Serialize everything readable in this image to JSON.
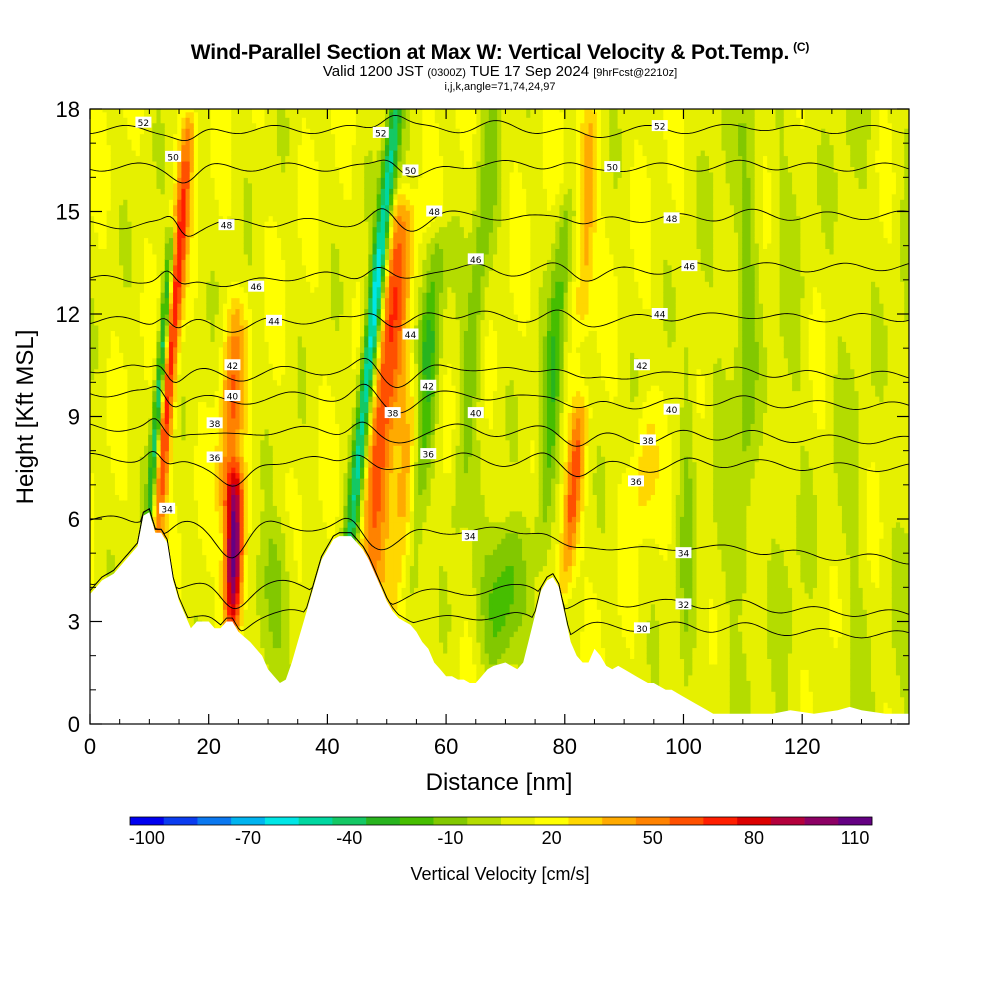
{
  "header": {
    "title": "Wind-Parallel Section at Max W: Vertical Velocity & Pot.Temp.",
    "copyright": "(C)",
    "valid_prefix": "Valid 1200 JST",
    "valid_utc": "(0300Z)",
    "valid_date": "TUE 17 Sep 2024",
    "forecast": "[9hrFcst@2210z]",
    "indices": "i,j,k,angle=71,74,24,97"
  },
  "chart_data": {
    "type": "heatmap",
    "xlabel": "Distance [nm]",
    "ylabel": "Height [Kft MSL]",
    "xlim": [
      0,
      138
    ],
    "ylim": [
      0,
      18
    ],
    "x_ticks": [
      0,
      20,
      40,
      60,
      80,
      100,
      120
    ],
    "y_ticks": [
      0,
      3,
      6,
      9,
      12,
      15,
      18
    ],
    "grid": false,
    "colorbar": {
      "title": "Vertical Velocity [cm/s]",
      "tick_labels": [
        "-100",
        "-70",
        "-40",
        "-10",
        "20",
        "50",
        "80",
        "110"
      ],
      "tick_values": [
        -100,
        -70,
        -40,
        -10,
        20,
        50,
        80,
        110
      ],
      "colors": [
        "#0000f0",
        "#0a3cf0",
        "#0a78f0",
        "#00b4f0",
        "#00e6e6",
        "#00d7a0",
        "#14c864",
        "#28b41e",
        "#46be00",
        "#82c800",
        "#b4dc00",
        "#e6f000",
        "#ffff00",
        "#ffd700",
        "#ffaa00",
        "#ff8200",
        "#ff5000",
        "#ff1e00",
        "#dc0000",
        "#b4003c",
        "#8c0064",
        "#640082"
      ],
      "range": [
        -105,
        115
      ]
    },
    "terrain_top_kft": [
      [
        0,
        3.8
      ],
      [
        2,
        4.2
      ],
      [
        4,
        4.4
      ],
      [
        6,
        4.8
      ],
      [
        8,
        5.2
      ],
      [
        9,
        6.1
      ],
      [
        10,
        6.2
      ],
      [
        11,
        5.6
      ],
      [
        12,
        5.6
      ],
      [
        13,
        5.3
      ],
      [
        14,
        4.2
      ],
      [
        15,
        3.6
      ],
      [
        16,
        3.2
      ],
      [
        17,
        2.8
      ],
      [
        18,
        3.0
      ],
      [
        20,
        3.0
      ],
      [
        21,
        2.8
      ],
      [
        22,
        2.8
      ],
      [
        23,
        3.0
      ],
      [
        24,
        3.0
      ],
      [
        25,
        2.7
      ],
      [
        27,
        2.4
      ],
      [
        29,
        2.0
      ],
      [
        30,
        1.6
      ],
      [
        31,
        1.4
      ],
      [
        32,
        1.2
      ],
      [
        33,
        1.3
      ],
      [
        34,
        1.8
      ],
      [
        35,
        2.4
      ],
      [
        36,
        3.0
      ],
      [
        37,
        3.6
      ],
      [
        38,
        4.2
      ],
      [
        39,
        4.8
      ],
      [
        40,
        5.1
      ],
      [
        41,
        5.4
      ],
      [
        42,
        5.5
      ],
      [
        44,
        5.5
      ],
      [
        45,
        5.3
      ],
      [
        46,
        5.1
      ],
      [
        47,
        4.8
      ],
      [
        48,
        4.4
      ],
      [
        49,
        4.0
      ],
      [
        50,
        3.6
      ],
      [
        51,
        3.3
      ],
      [
        52,
        3.1
      ],
      [
        53,
        3.0
      ],
      [
        54,
        2.9
      ],
      [
        55,
        2.7
      ],
      [
        56,
        2.4
      ],
      [
        57,
        2.2
      ],
      [
        58,
        1.8
      ],
      [
        59,
        1.6
      ],
      [
        60,
        1.4
      ],
      [
        61,
        1.4
      ],
      [
        62,
        1.3
      ],
      [
        63,
        1.3
      ],
      [
        64,
        1.2
      ],
      [
        65,
        1.2
      ],
      [
        66,
        1.4
      ],
      [
        67,
        1.6
      ],
      [
        68,
        1.7
      ],
      [
        70,
        1.8
      ],
      [
        72,
        1.6
      ],
      [
        73,
        1.8
      ],
      [
        74,
        2.5
      ],
      [
        75,
        3.2
      ],
      [
        76,
        3.9
      ],
      [
        77,
        4.2
      ],
      [
        78,
        4.3
      ],
      [
        79,
        4.0
      ],
      [
        80,
        3.2
      ],
      [
        81,
        2.4
      ],
      [
        82,
        2.0
      ],
      [
        83,
        1.8
      ],
      [
        84,
        1.8
      ],
      [
        85,
        2.2
      ],
      [
        86,
        2.0
      ],
      [
        87,
        1.7
      ],
      [
        88,
        1.6
      ],
      [
        89,
        1.7
      ],
      [
        90,
        1.6
      ],
      [
        91,
        1.5
      ],
      [
        92,
        1.4
      ],
      [
        93,
        1.3
      ],
      [
        94,
        1.2
      ],
      [
        95,
        1.2
      ],
      [
        96,
        1.1
      ],
      [
        97,
        1.0
      ],
      [
        98,
        1.0
      ],
      [
        99,
        0.9
      ],
      [
        100,
        0.8
      ],
      [
        101,
        0.7
      ],
      [
        102,
        0.6
      ],
      [
        103,
        0.5
      ],
      [
        104,
        0.4
      ],
      [
        105,
        0.3
      ],
      [
        110,
        0.3
      ],
      [
        115,
        0.3
      ],
      [
        118,
        0.4
      ],
      [
        122,
        0.3
      ],
      [
        126,
        0.4
      ],
      [
        128,
        0.5
      ],
      [
        130,
        0.4
      ],
      [
        132,
        0.35
      ],
      [
        134,
        0.3
      ],
      [
        138,
        0.3
      ]
    ],
    "updrafts": [
      {
        "x": 11.0,
        "slope": 0.45,
        "width": 1.3,
        "peak": 62,
        "zmin": 5.0,
        "zmax": 17.5
      },
      {
        "x": 24.0,
        "slope": 0.1,
        "width": 1.5,
        "peak": 110,
        "zmin": 3.0,
        "zmax": 7.0
      },
      {
        "x": 23.0,
        "slope": 0.3,
        "width": 2.0,
        "peak": 40,
        "zmin": 6.5,
        "zmax": 12.0
      },
      {
        "x": 47.0,
        "slope": 0.5,
        "width": 2.6,
        "peak": 55,
        "zmin": 4.2,
        "zmax": 15.0
      },
      {
        "x": 52.0,
        "slope": 0.4,
        "width": 2.3,
        "peak": 30,
        "zmin": 3.5,
        "zmax": 10.0
      },
      {
        "x": 80.0,
        "slope": 0.5,
        "width": 1.5,
        "peak": 48,
        "zmin": 4.0,
        "zmax": 9.0
      },
      {
        "x": 83.0,
        "slope": 0.2,
        "width": 1.6,
        "peak": 35,
        "zmin": 12.0,
        "zmax": 17.5
      },
      {
        "x": 93.0,
        "slope": 0.2,
        "width": 2.0,
        "peak": 20,
        "zmin": 6.0,
        "zmax": 9.0
      }
    ],
    "downdrafts": [
      {
        "x": 10.0,
        "slope": 0.45,
        "width": 0.8,
        "peak": -70,
        "zmin": 6.0,
        "zmax": 14.0
      },
      {
        "x": 44.0,
        "slope": 0.6,
        "width": 1.3,
        "peak": -85,
        "zmin": 5.5,
        "zmax": 18.0
      },
      {
        "x": 54.0,
        "slope": 0.45,
        "width": 1.8,
        "peak": -40,
        "zmin": 4.0,
        "zmax": 14.0
      },
      {
        "x": 69.0,
        "slope": 0.4,
        "width": 3.5,
        "peak": -40,
        "zmin": 2.0,
        "zmax": 5.5
      },
      {
        "x": 76.0,
        "slope": 0.4,
        "width": 1.6,
        "peak": -35,
        "zmin": 5.0,
        "zmax": 15.0
      },
      {
        "x": 30.0,
        "slope": 0.3,
        "width": 3.5,
        "peak": -22,
        "zmin": 1.5,
        "zmax": 5.5
      },
      {
        "x": 62.0,
        "slope": 0.5,
        "width": 1.8,
        "peak": -25,
        "zmin": 6.0,
        "zmax": 18.0
      },
      {
        "x": 110.0,
        "slope": 0.1,
        "width": 1.8,
        "peak": -18,
        "zmin": 4.0,
        "zmax": 18.0
      },
      {
        "x": 100.0,
        "slope": 0.1,
        "width": 1.5,
        "peak": -15,
        "zmin": 0.5,
        "zmax": 12.0
      }
    ],
    "theta_contours": [
      {
        "label": "30",
        "z_left": 3.3,
        "z_right": 2.6
      },
      {
        "label": "32",
        "z_left": 4.2,
        "z_right": 3.2
      },
      {
        "label": "34",
        "z_left": 6.0,
        "z_right": 4.8
      },
      {
        "label": "36",
        "z_left": 7.8,
        "z_right": 7.5
      },
      {
        "label": "38",
        "z_left": 8.7,
        "z_right": 8.3
      },
      {
        "label": "40",
        "z_left": 9.7,
        "z_right": 9.3
      },
      {
        "label": "42",
        "z_left": 10.4,
        "z_right": 10.2
      },
      {
        "label": "44",
        "z_left": 11.8,
        "z_right": 11.9
      },
      {
        "label": "46",
        "z_left": 13.0,
        "z_right": 13.4
      },
      {
        "label": "48",
        "z_left": 14.6,
        "z_right": 14.9
      },
      {
        "label": "50",
        "z_left": 16.3,
        "z_right": 16.3
      },
      {
        "label": "52",
        "z_left": 17.4,
        "z_right": 17.4
      }
    ],
    "contour_labels": [
      {
        "text": "52",
        "x": 9,
        "z": 17.6
      },
      {
        "text": "50",
        "x": 14,
        "z": 16.6
      },
      {
        "text": "48",
        "x": 23,
        "z": 14.6
      },
      {
        "text": "46",
        "x": 28,
        "z": 12.8
      },
      {
        "text": "44",
        "x": 31,
        "z": 11.8
      },
      {
        "text": "42",
        "x": 24,
        "z": 10.5
      },
      {
        "text": "40",
        "x": 24,
        "z": 9.6
      },
      {
        "text": "38",
        "x": 21,
        "z": 8.8
      },
      {
        "text": "36",
        "x": 21,
        "z": 7.8
      },
      {
        "text": "34",
        "x": 13,
        "z": 6.3
      },
      {
        "text": "52",
        "x": 49,
        "z": 17.3
      },
      {
        "text": "50",
        "x": 54,
        "z": 16.2
      },
      {
        "text": "48",
        "x": 58,
        "z": 15.0
      },
      {
        "text": "46",
        "x": 65,
        "z": 13.6
      },
      {
        "text": "44",
        "x": 54,
        "z": 11.4
      },
      {
        "text": "42",
        "x": 57,
        "z": 9.9
      },
      {
        "text": "40",
        "x": 65,
        "z": 9.1
      },
      {
        "text": "38",
        "x": 51,
        "z": 9.1
      },
      {
        "text": "36",
        "x": 57,
        "z": 7.9
      },
      {
        "text": "34",
        "x": 64,
        "z": 5.5
      },
      {
        "text": "52",
        "x": 96,
        "z": 17.5
      },
      {
        "text": "50",
        "x": 88,
        "z": 16.3
      },
      {
        "text": "48",
        "x": 98,
        "z": 14.8
      },
      {
        "text": "46",
        "x": 101,
        "z": 13.4
      },
      {
        "text": "44",
        "x": 96,
        "z": 12.0
      },
      {
        "text": "42",
        "x": 93,
        "z": 10.5
      },
      {
        "text": "40",
        "x": 98,
        "z": 9.2
      },
      {
        "text": "38",
        "x": 94,
        "z": 8.3
      },
      {
        "text": "36",
        "x": 92,
        "z": 7.1
      },
      {
        "text": "34",
        "x": 100,
        "z": 5.0
      },
      {
        "text": "32",
        "x": 100,
        "z": 3.5
      },
      {
        "text": "30",
        "x": 93,
        "z": 2.8
      }
    ]
  }
}
